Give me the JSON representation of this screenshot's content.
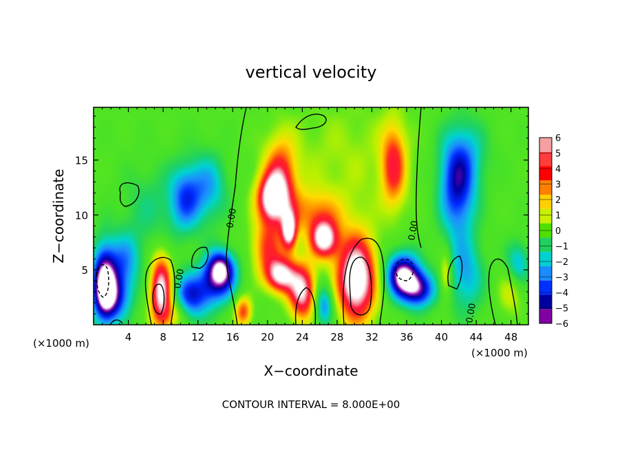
{
  "chart_data": {
    "type": "heatmap",
    "title": "vertical velocity",
    "xlabel": "X−coordinate",
    "ylabel": "Z−coordinate",
    "x_unit_left": "(×1000 m)",
    "x_unit_right": "(×1000 m)",
    "footer": "CONTOUR INTERVAL = 8.000E+00",
    "xlim": [
      0,
      50
    ],
    "ylim": [
      0,
      19.8
    ],
    "x_ticks": [
      4,
      8,
      12,
      16,
      20,
      24,
      28,
      32,
      36,
      40,
      44,
      48
    ],
    "x_tick_labels": [
      "4",
      "8",
      "12",
      "16",
      "20",
      "24",
      "28",
      "32",
      "36",
      "40",
      "44",
      "48"
    ],
    "y_ticks": [
      5,
      10,
      15
    ],
    "y_tick_labels": [
      "5",
      "10",
      "15"
    ],
    "colorbar": {
      "range": [
        -6,
        6
      ],
      "labels": [
        "6",
        "5",
        "4",
        "3",
        "2",
        "1",
        "0",
        "−1",
        "−2",
        "−3",
        "−4",
        "−5",
        "−6"
      ],
      "values": [
        6,
        5,
        4,
        3,
        2,
        1,
        0,
        -1,
        -2,
        -3,
        -4,
        -5,
        -6
      ],
      "colors": [
        "#f4a0a0",
        "#ff3c3c",
        "#ff0000",
        "#ff8000",
        "#ffd000",
        "#c8f000",
        "#50e000",
        "#20d060",
        "#00d0d0",
        "#1a8cff",
        "#0030ff",
        "#0000a0",
        "#8000a0"
      ]
    },
    "contour_labels": [
      "0.00",
      "0.00",
      "0.00",
      "0.00"
    ],
    "background_color": "#55e021",
    "features": [
      {
        "x": 1.2,
        "z": 3.8,
        "value": -7,
        "sx": 1.0,
        "sz": 2.5
      },
      {
        "x": 2.5,
        "z": 2.5,
        "value": -4,
        "sx": 1.4,
        "sz": 1.6
      },
      {
        "x": 3.6,
        "z": 5.8,
        "value": -3,
        "sx": 1.3,
        "sz": 1.8
      },
      {
        "x": 7.8,
        "z": 3.0,
        "value": 8,
        "sx": 0.9,
        "sz": 2.3
      },
      {
        "x": 11.0,
        "z": 2.5,
        "value": -4.5,
        "sx": 1.6,
        "sz": 1.6
      },
      {
        "x": 10.5,
        "z": 11.5,
        "value": -3.5,
        "sx": 1.3,
        "sz": 2.2
      },
      {
        "x": 13.2,
        "z": 12.5,
        "value": -3,
        "sx": 1.6,
        "sz": 2.3
      },
      {
        "x": 14.6,
        "z": 5.2,
        "value": -6,
        "sx": 1.2,
        "sz": 1.2
      },
      {
        "x": 14.2,
        "z": 3.5,
        "value": -3.5,
        "sx": 1.6,
        "sz": 1.4
      },
      {
        "x": 6.5,
        "z": 10.5,
        "value": -1.5,
        "sx": 2.5,
        "sz": 3.0
      },
      {
        "x": 17.2,
        "z": 1.2,
        "value": 4.5,
        "sx": 0.7,
        "sz": 1.0
      },
      {
        "x": 20.5,
        "z": 11.5,
        "value": 7,
        "sx": 1.2,
        "sz": 1.5
      },
      {
        "x": 21.5,
        "z": 13.5,
        "value": 4.5,
        "sx": 1.3,
        "sz": 2.5
      },
      {
        "x": 20.0,
        "z": 7.0,
        "value": 4,
        "sx": 1.3,
        "sz": 1.8
      },
      {
        "x": 21.5,
        "z": 4.5,
        "value": 7,
        "sx": 1.2,
        "sz": 1.1
      },
      {
        "x": 22.5,
        "z": 8.5,
        "value": 7,
        "sx": 0.6,
        "sz": 1.2
      },
      {
        "x": 24.0,
        "z": 3.0,
        "value": 7,
        "sx": 1.1,
        "sz": 1.8
      },
      {
        "x": 26.5,
        "z": 7.8,
        "value": 7.5,
        "sx": 1.1,
        "sz": 1.2
      },
      {
        "x": 25.2,
        "z": 10.2,
        "value": 3,
        "sx": 2.5,
        "sz": 1.5
      },
      {
        "x": 26.5,
        "z": 1.8,
        "value": -4,
        "sx": 0.8,
        "sz": 1.4
      },
      {
        "x": 30.2,
        "z": 4.2,
        "value": 9,
        "sx": 1.6,
        "sz": 2.7
      },
      {
        "x": 34.5,
        "z": 14.5,
        "value": 4.5,
        "sx": 1.0,
        "sz": 2.7
      },
      {
        "x": 35.5,
        "z": 4.5,
        "value": -7,
        "sx": 1.4,
        "sz": 1.5
      },
      {
        "x": 37.5,
        "z": 3.2,
        "value": -5,
        "sx": 1.3,
        "sz": 1.2
      },
      {
        "x": 41.8,
        "z": 12.0,
        "value": -4.5,
        "sx": 1.5,
        "sz": 3.0
      },
      {
        "x": 42.5,
        "z": 15.5,
        "value": -2.5,
        "sx": 2.0,
        "sz": 2.5
      },
      {
        "x": 40.5,
        "z": 4.5,
        "value": 3,
        "sx": 0.5,
        "sz": 1.5
      },
      {
        "x": 42.8,
        "z": 4.5,
        "value": -3,
        "sx": 1.5,
        "sz": 2.5
      },
      {
        "x": 48.0,
        "z": 3.0,
        "value": 2,
        "sx": 1.0,
        "sz": 1.5
      },
      {
        "x": 48.8,
        "z": 5.5,
        "value": -3,
        "sx": 1.0,
        "sz": 1.5
      },
      {
        "x": 29.0,
        "z": 15.0,
        "value": 1.2,
        "sx": 6.0,
        "sz": 4.0
      },
      {
        "x": 9.5,
        "z": 1.0,
        "value": 2.5,
        "sx": 1.0,
        "sz": 1.0
      }
    ]
  }
}
